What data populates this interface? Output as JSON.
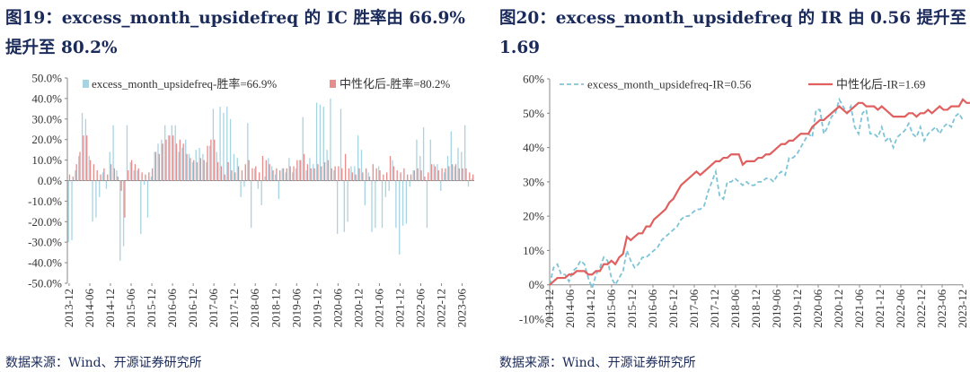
{
  "figures": [
    {
      "title": "图19：excess_month_upsidefreq 的 IC 胜率由 66.9%提升至 80.2%",
      "source": "数据来源：Wind、开源证券研究所"
    },
    {
      "title": "图20：excess_month_upsidefreq 的 IR 由 0.56 提升至 1.69",
      "source": "数据来源：Wind、开源证券研究所"
    }
  ],
  "chart_data": [
    {
      "type": "bar",
      "legend_position": "top",
      "ylim": [
        -0.5,
        0.5
      ],
      "y_tick_labels": [
        "50.0%",
        "40.0%",
        "30.0%",
        "20.0%",
        "10.0%",
        "0.0%",
        "-10.0%",
        "-20.0%",
        "-30.0%",
        "-40.0%",
        "-50.0%"
      ],
      "y_ticks": [
        0.5,
        0.4,
        0.3,
        0.2,
        0.1,
        0,
        -0.1,
        -0.2,
        -0.3,
        -0.4,
        -0.5
      ],
      "x_tick_labels": [
        "2013-12",
        "2014-06",
        "2014-12",
        "2015-06",
        "2015-12",
        "2016-06",
        "2016-12",
        "2017-06",
        "2017-12",
        "2018-06",
        "2018-12",
        "2019-06",
        "2019-12",
        "2020-06",
        "2020-12",
        "2021-06",
        "2021-12",
        "2022-06",
        "2022-12",
        "2023-06"
      ],
      "grid": false,
      "series": [
        {
          "name": "excess_month_upsidefreq-胜率=66.9%",
          "color": "#a8d4e2",
          "values": [
            -0.3,
            -0.29,
            0.05,
            0.12,
            0.33,
            0.3,
            0.12,
            -0.2,
            -0.18,
            -0.08,
            0.04,
            -0.04,
            0.14,
            0.27,
            0.05,
            -0.39,
            -0.32,
            0.27,
            0.09,
            0.05,
            0.05,
            -0.26,
            -0.02,
            -0.18,
            0.02,
            0.14,
            0.18,
            0.2,
            0.27,
            0.22,
            0.27,
            0.27,
            0.14,
            0.16,
            0.2,
            0.13,
            0.09,
            0.15,
            0.16,
            0.13,
            0.09,
            0.17,
            0.35,
            0.14,
            0.36,
            0.33,
            0.36,
            0.3,
            0.13,
            0.11,
            -0.08,
            -0.03,
            0.28,
            -0.23,
            0.06,
            -0.04,
            -0.12,
            0.02,
            0.11,
            0.07,
            0.03,
            -0.09,
            0.06,
            0.04,
            0.11,
            0.04,
            0.06,
            0.1,
            0.31,
            0.05,
            0.11,
            0.08,
            0.38,
            0.37,
            0.36,
            0.15,
            0.4,
            0.05,
            -0.26,
            0.35,
            -0.25,
            -0.2,
            0.07,
            0.07,
            0.22,
            0.15,
            -0.12,
            0.04,
            -0.25,
            -0.23,
            0.07,
            -0.23,
            -0.08,
            -0.05,
            0.1,
            -0.23,
            -0.36,
            -0.22,
            -0.21,
            -0.03,
            0.05,
            0.2,
            0.12,
            0.26,
            -0.23,
            0.2,
            0.08,
            0.08,
            -0.05,
            0.04,
            0.12,
            0.24,
            0.07,
            0.16,
            0.14,
            0.27,
            -0.03,
            0.01
          ],
          "truncated_note": ""
        },
        {
          "name": "中性化后-胜率=80.2%",
          "color": "#e88c8c",
          "values": [
            0.03,
            0.02,
            0.08,
            0.14,
            0.22,
            0.22,
            0.1,
            0.08,
            0.05,
            0.03,
            0.06,
            0.03,
            0.08,
            0.06,
            0.02,
            -0.05,
            -0.18,
            0.05,
            0.1,
            0.08,
            0.06,
            0.04,
            0.03,
            0.04,
            0.06,
            0.14,
            0.13,
            0.18,
            0.2,
            0.22,
            0.22,
            0.18,
            0.2,
            0.18,
            0.13,
            0.11,
            0.1,
            0.09,
            0.11,
            0.1,
            0.17,
            0.2,
            0.2,
            0.09,
            0.07,
            0.03,
            0.09,
            0.05,
            0.04,
            0.07,
            0.05,
            0.08,
            0.1,
            0.06,
            0.07,
            0.04,
            0.12,
            0.1,
            0.08,
            0.05,
            0.06,
            0.05,
            0.06,
            0.06,
            0.07,
            0.07,
            0.1,
            0.1,
            0.13,
            0.08,
            0.06,
            0.06,
            0.08,
            0.07,
            0.09,
            0.1,
            0.06,
            0.07,
            0.07,
            0.06,
            0.13,
            0.06,
            0.04,
            0.03,
            0.06,
            0.04,
            0.06,
            0.02,
            0.08,
            0.06,
            0.05,
            0.03,
            0.04,
            0.12,
            0.07,
            0.05,
            0.04,
            0.06,
            0.03,
            0.03,
            0.05,
            0.06,
            0.05,
            0.02,
            0.04,
            0.08,
            0.07,
            0.05,
            0.06,
            0.06,
            0.07,
            0.08,
            0.08,
            0.06,
            0.06,
            0.06,
            0.04,
            0.03
          ]
        }
      ]
    },
    {
      "type": "line",
      "legend_position": "top",
      "ylim": [
        -0.1,
        0.6
      ],
      "y_tick_labels": [
        "60%",
        "50%",
        "40%",
        "30%",
        "20%",
        "10%",
        "0%",
        "-10%"
      ],
      "y_ticks": [
        0.6,
        0.5,
        0.4,
        0.3,
        0.2,
        0.1,
        0,
        -0.1
      ],
      "x_tick_labels": [
        "2013-12",
        "2014-06",
        "2014-12",
        "2015-06",
        "2015-12",
        "2016-06",
        "2016-12",
        "2017-06",
        "2017-12",
        "2018-06",
        "2018-12",
        "2019-06",
        "2019-12",
        "2020-06",
        "2020-12",
        "2021-06",
        "2021-12",
        "2022-06",
        "2022-12",
        "2023-06",
        "2023-12"
      ],
      "grid": false,
      "series": [
        {
          "name": "excess_month_upsidefreq-IR=0.56",
          "color": "#7fc4d6",
          "dashed": true,
          "values": [
            0.0,
            0.05,
            0.06,
            0.03,
            0.03,
            0.01,
            0.04,
            0.05,
            0.07,
            0.06,
            0.02,
            -0.01,
            0.03,
            0.05,
            0.08,
            0.07,
            0.02,
            0.0,
            0.02,
            0.04,
            0.1,
            0.07,
            0.05,
            0.06,
            0.08,
            0.08,
            0.09,
            0.1,
            0.11,
            0.13,
            0.14,
            0.15,
            0.16,
            0.17,
            0.19,
            0.2,
            0.2,
            0.21,
            0.22,
            0.22,
            0.23,
            0.27,
            0.3,
            0.33,
            0.26,
            0.25,
            0.3,
            0.3,
            0.31,
            0.3,
            0.29,
            0.3,
            0.29,
            0.29,
            0.3,
            0.3,
            0.31,
            0.31,
            0.3,
            0.32,
            0.33,
            0.32,
            0.37,
            0.37,
            0.38,
            0.4,
            0.42,
            0.44,
            0.43,
            0.51,
            0.51,
            0.44,
            0.46,
            0.49,
            0.5,
            0.54,
            0.52,
            0.5,
            0.52,
            0.46,
            0.44,
            0.5,
            0.51,
            0.44,
            0.44,
            0.43,
            0.46,
            0.42,
            0.43,
            0.4,
            0.43,
            0.44,
            0.45,
            0.47,
            0.44,
            0.43,
            0.46,
            0.42,
            0.44,
            0.45,
            0.46,
            0.44,
            0.46,
            0.47,
            0.46,
            0.49,
            0.5,
            0.48
          ]
        },
        {
          "name": "中性化后-IR=1.69",
          "color": "#e06060",
          "dashed": false,
          "values": [
            0.0,
            0.01,
            0.02,
            0.02,
            0.02,
            0.03,
            0.03,
            0.04,
            0.04,
            0.04,
            0.03,
            0.03,
            0.04,
            0.04,
            0.06,
            0.06,
            0.07,
            0.06,
            0.08,
            0.09,
            0.14,
            0.13,
            0.14,
            0.15,
            0.15,
            0.17,
            0.17,
            0.19,
            0.2,
            0.21,
            0.22,
            0.24,
            0.25,
            0.27,
            0.29,
            0.3,
            0.31,
            0.32,
            0.33,
            0.32,
            0.33,
            0.34,
            0.35,
            0.36,
            0.36,
            0.37,
            0.37,
            0.38,
            0.38,
            0.38,
            0.35,
            0.36,
            0.36,
            0.36,
            0.37,
            0.37,
            0.38,
            0.38,
            0.39,
            0.4,
            0.41,
            0.41,
            0.42,
            0.42,
            0.43,
            0.44,
            0.44,
            0.44,
            0.46,
            0.47,
            0.48,
            0.48,
            0.49,
            0.5,
            0.51,
            0.52,
            0.51,
            0.5,
            0.51,
            0.52,
            0.53,
            0.53,
            0.52,
            0.52,
            0.52,
            0.51,
            0.52,
            0.51,
            0.5,
            0.49,
            0.49,
            0.49,
            0.49,
            0.5,
            0.5,
            0.49,
            0.5,
            0.5,
            0.51,
            0.5,
            0.51,
            0.52,
            0.51,
            0.51,
            0.52,
            0.52,
            0.52,
            0.54,
            0.53,
            0.53
          ]
        }
      ]
    }
  ]
}
